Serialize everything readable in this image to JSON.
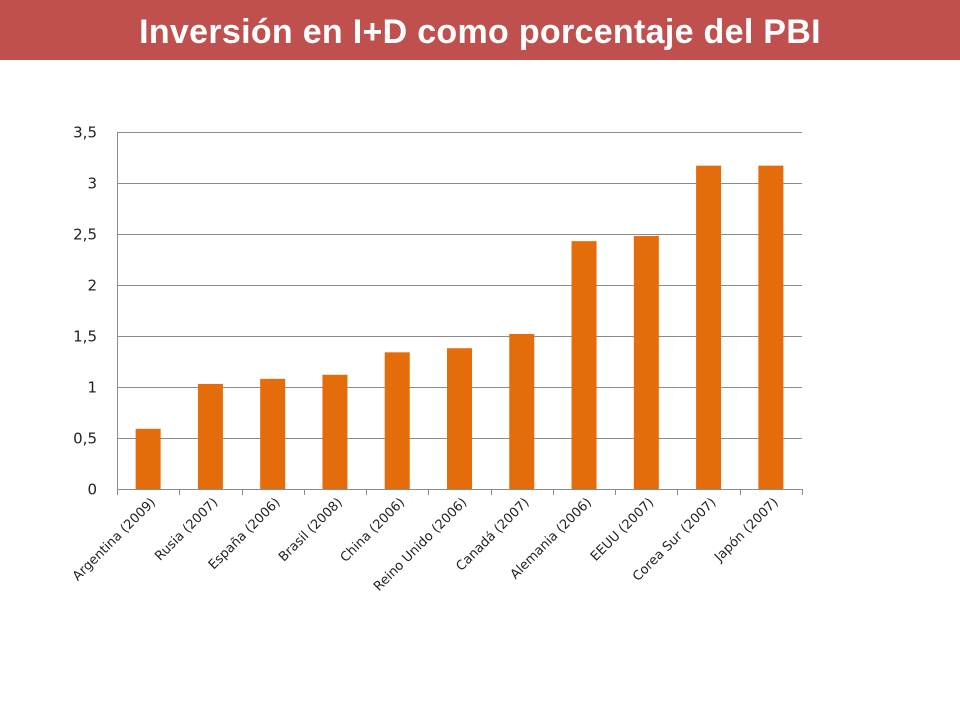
{
  "title": "Inversión en I+D como porcentaje del PBI",
  "colors": {
    "title_bar": "#c0504d",
    "title_text": "#ffffff",
    "bar": "#e46c0a",
    "grid": "#8c8c8c"
  },
  "chart_data": {
    "type": "bar",
    "title": "",
    "xlabel": "",
    "ylabel": "",
    "categories": [
      "Argentina (2009)",
      "Rusia (2007)",
      "España (2006)",
      "Brasil (2008)",
      "China (2006)",
      "Reino Unido (2006)",
      "Canadá (2007)",
      "Alemania (2006)",
      "EEUU (2007)",
      "Corea Sur (2007)",
      "Japón (2007)"
    ],
    "values": [
      0.59,
      1.03,
      1.08,
      1.12,
      1.34,
      1.38,
      1.52,
      2.43,
      2.48,
      3.17,
      3.17
    ],
    "ylim": [
      0,
      3.5
    ],
    "yticks": [
      0,
      0.5,
      1,
      1.5,
      2,
      2.5,
      3,
      3.5
    ],
    "ytick_labels": [
      "0",
      "0,5",
      "1",
      "1,5",
      "2",
      "2,5",
      "3",
      "3,5"
    ],
    "grid": true,
    "legend": "none"
  }
}
